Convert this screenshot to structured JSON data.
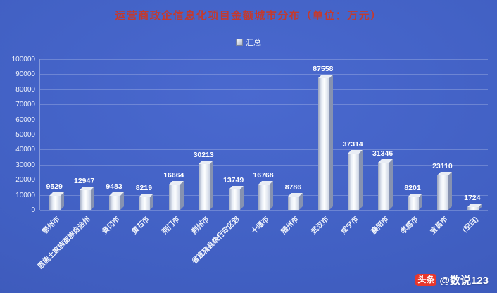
{
  "chart_data": {
    "type": "bar",
    "title": "运营商政企信息化项目金额城市分布（单位：万元）",
    "categories": [
      "鄂州市",
      "恩施土家族苗族自治州",
      "黄冈市",
      "黄石市",
      "荆门市",
      "荆州市",
      "省直辖县级行政区划",
      "十堰市",
      "随州市",
      "武汉市",
      "咸宁市",
      "襄阳市",
      "孝感市",
      "宜昌市",
      "(空白)"
    ],
    "values": [
      9529,
      12947,
      9483,
      8219,
      16664,
      30213,
      13749,
      16768,
      8786,
      87558,
      37314,
      31346,
      8201,
      23110,
      1724
    ],
    "series_name": "汇总",
    "xlabel": "",
    "ylabel": "",
    "ylim": [
      0,
      100000
    ],
    "ytick_step": 10000,
    "grid": true,
    "legend_position": "top",
    "bar_style": "3d-white"
  },
  "legend": {
    "label": "汇总"
  },
  "watermark": {
    "logo": "头条",
    "handle": "@数说123"
  },
  "colors": {
    "background": "#4160c3",
    "title": "#c43a2e",
    "axis_text": "#eef2fb",
    "bar_face": "#f5f8fc",
    "bar_side": "#8692b1",
    "gridline": "rgba(255,255,255,0.22)",
    "watermark_accent": "#e8372c",
    "watermark_text": "#ffffff"
  }
}
